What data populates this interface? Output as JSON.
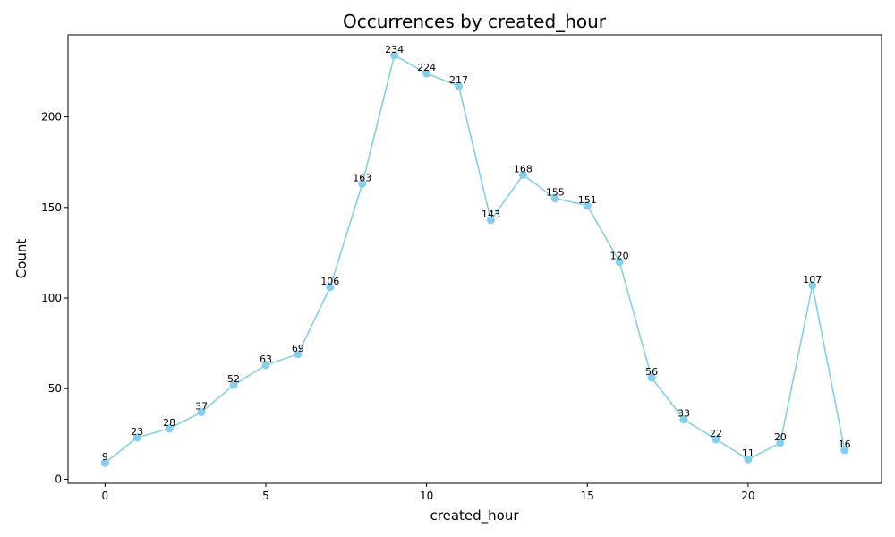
{
  "chart_data": {
    "type": "line",
    "title": "Occurrences by created_hour",
    "xlabel": "created_hour",
    "ylabel": "Count",
    "x": [
      0,
      1,
      2,
      3,
      4,
      5,
      6,
      7,
      8,
      9,
      10,
      11,
      12,
      13,
      14,
      15,
      16,
      17,
      18,
      19,
      20,
      21,
      22,
      23
    ],
    "values": [
      9,
      23,
      28,
      37,
      52,
      63,
      69,
      106,
      163,
      234,
      224,
      217,
      143,
      168,
      155,
      151,
      120,
      56,
      33,
      22,
      11,
      20,
      107,
      16
    ],
    "xlim": [
      -1.15,
      24.15
    ],
    "ylim": [
      -2.25,
      245.25
    ],
    "xticks": [
      0,
      5,
      10,
      15,
      20
    ],
    "yticks": [
      0,
      50,
      100,
      150,
      200
    ],
    "grid": false,
    "series_color": "#87ceeb"
  }
}
